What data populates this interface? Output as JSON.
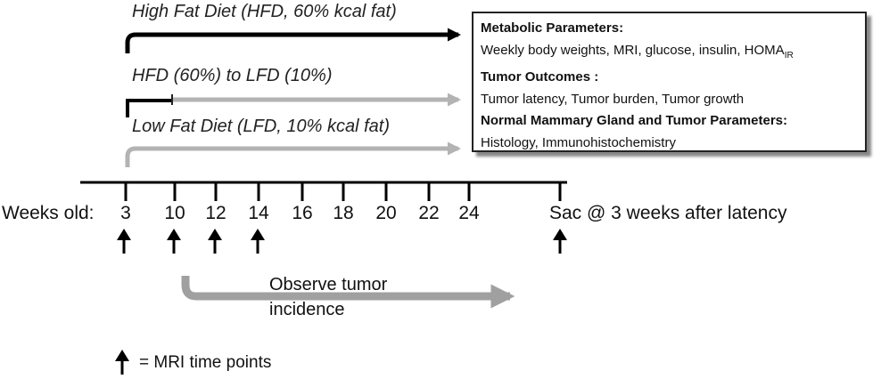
{
  "diets": [
    {
      "label": "High Fat Diet  (HFD, 60% kcal fat)"
    },
    {
      "label": "HFD (60%) to LFD (10%)"
    },
    {
      "label": "Low Fat Diet (LFD, 10% kcal fat)"
    }
  ],
  "box": {
    "metabolic_heading": "Metabolic Parameters:",
    "metabolic_text": "Weekly body weights, MRI, glucose, insulin, HOMA",
    "metabolic_sub": "IR",
    "tumor_heading": "Tumor Outcomes :",
    "tumor_text": "Tumor latency, Tumor burden, Tumor growth",
    "gland_heading": "Normal Mammary Gland and Tumor Parameters:",
    "gland_text": "Histology, Immunohistochemistry"
  },
  "timeline": {
    "label": "Weeks old:",
    "weeks": [
      "3",
      "10",
      "12",
      "14",
      "16",
      "18",
      "20",
      "22",
      "24"
    ],
    "sac_label": "Sac @ 3 weeks after latency",
    "mri_weeks": [
      "3",
      "10",
      "12",
      "14"
    ]
  },
  "observe": {
    "line1": "Observe tumor",
    "line2": "incidence"
  },
  "legend": {
    "text": "= MRI time points"
  },
  "colors": {
    "hfd": "#000000",
    "lfd": "#b3b3b3",
    "observe": "#a0a0a0"
  }
}
